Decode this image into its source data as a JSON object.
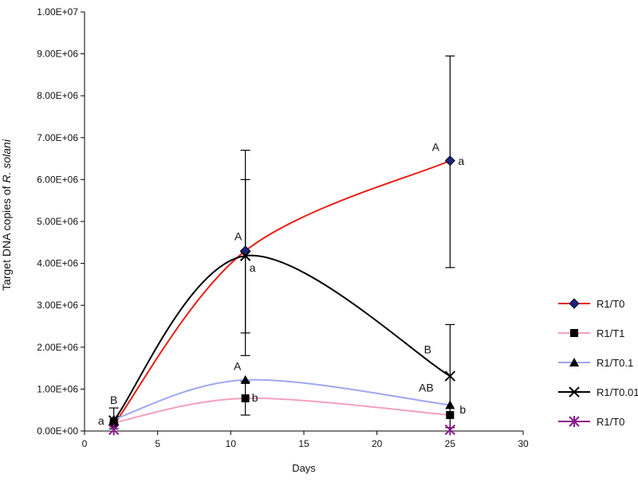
{
  "chart_data": {
    "type": "line",
    "title": "",
    "xlabel": "Days",
    "ylabel_prefix": "Target DNA copies of ",
    "ylabel_italic": "R. solani",
    "xlim": [
      0,
      30
    ],
    "ylim": [
      0,
      10000000
    ],
    "x_ticks": [
      0,
      5,
      10,
      15,
      20,
      25,
      30
    ],
    "x_tick_labels": [
      "0",
      "5",
      "10",
      "15",
      "20",
      "25",
      "30"
    ],
    "y_ticks": [
      0,
      1000000,
      2000000,
      3000000,
      4000000,
      5000000,
      6000000,
      7000000,
      8000000,
      9000000,
      10000000
    ],
    "y_tick_labels": [
      "0.00E+00",
      "1.00E+06",
      "2.00E+06",
      "3.00E+06",
      "4.00E+06",
      "5.00E+06",
      "6.00E+06",
      "7.00E+06",
      "8.00E+06",
      "9.00E+06",
      "1.00E+07"
    ],
    "grid": false,
    "legend_position": "right",
    "x": [
      2,
      11,
      25
    ],
    "series": [
      {
        "name": "R1/T0",
        "values": [
          150000,
          4300000,
          6450000
        ],
        "err_low": [
          null,
          1800000,
          3900000
        ],
        "err_high": [
          null,
          6700000,
          8950000
        ],
        "color": "#e8201a",
        "marker": "diamond",
        "marker_color": "#1a237e"
      },
      {
        "name": "R1/T1",
        "values": [
          200000,
          780000,
          380000
        ],
        "err_low": [
          null,
          380000,
          null
        ],
        "err_high": [
          null,
          1180000,
          null
        ],
        "color": "#f4a0c0",
        "marker": "square",
        "marker_color": "#000000"
      },
      {
        "name": "R1/T0.1",
        "values": [
          280000,
          1220000,
          620000
        ],
        "err_low": [
          null,
          null,
          null
        ],
        "err_high": [
          null,
          null,
          null
        ],
        "color": "#9ea8f0",
        "marker": "triangle",
        "marker_color": "#000000"
      },
      {
        "name": "R1/T0.01",
        "values": [
          250000,
          4180000,
          1310000
        ],
        "err_low": [
          50000,
          2340000,
          80000
        ],
        "err_high": [
          550000,
          6000000,
          2540000
        ],
        "color": "#000000",
        "marker": "x",
        "marker_color": "#000000"
      },
      {
        "name": "R1/T0",
        "values": [
          30000,
          null,
          30000
        ],
        "err_low": [
          null,
          null,
          null
        ],
        "err_high": [
          null,
          null,
          null
        ],
        "color": "#8b1a8b",
        "marker": "asterisk",
        "marker_color": "#8b1a8b",
        "no_line": true
      }
    ],
    "annotations": [
      {
        "text": "B",
        "x": 2,
        "y": 650000,
        "dx": 0,
        "anchor": "middle"
      },
      {
        "text": "a",
        "x": 2,
        "y": 150000,
        "dx": -12,
        "anchor": "end"
      },
      {
        "text": "A",
        "x": 11,
        "y": 4550000,
        "dx": -9,
        "anchor": "middle"
      },
      {
        "text": "a",
        "x": 11,
        "y": 3800000,
        "dx": 9,
        "anchor": "middle"
      },
      {
        "text": "A",
        "x": 11,
        "y": 1450000,
        "dx": -10,
        "anchor": "middle"
      },
      {
        "text": "b",
        "x": 11,
        "y": 700000,
        "dx": 12,
        "anchor": "middle"
      },
      {
        "text": "A",
        "x": 25,
        "y": 6680000,
        "dx": -18,
        "anchor": "middle"
      },
      {
        "text": "a",
        "x": 25,
        "y": 6350000,
        "dx": 14,
        "anchor": "middle"
      },
      {
        "text": "B",
        "x": 25,
        "y": 1850000,
        "dx": -28,
        "anchor": "middle"
      },
      {
        "text": "AB",
        "x": 25,
        "y": 940000,
        "dx": -30,
        "anchor": "middle"
      },
      {
        "text": "b",
        "x": 25,
        "y": 420000,
        "dx": 16,
        "anchor": "middle"
      }
    ]
  }
}
